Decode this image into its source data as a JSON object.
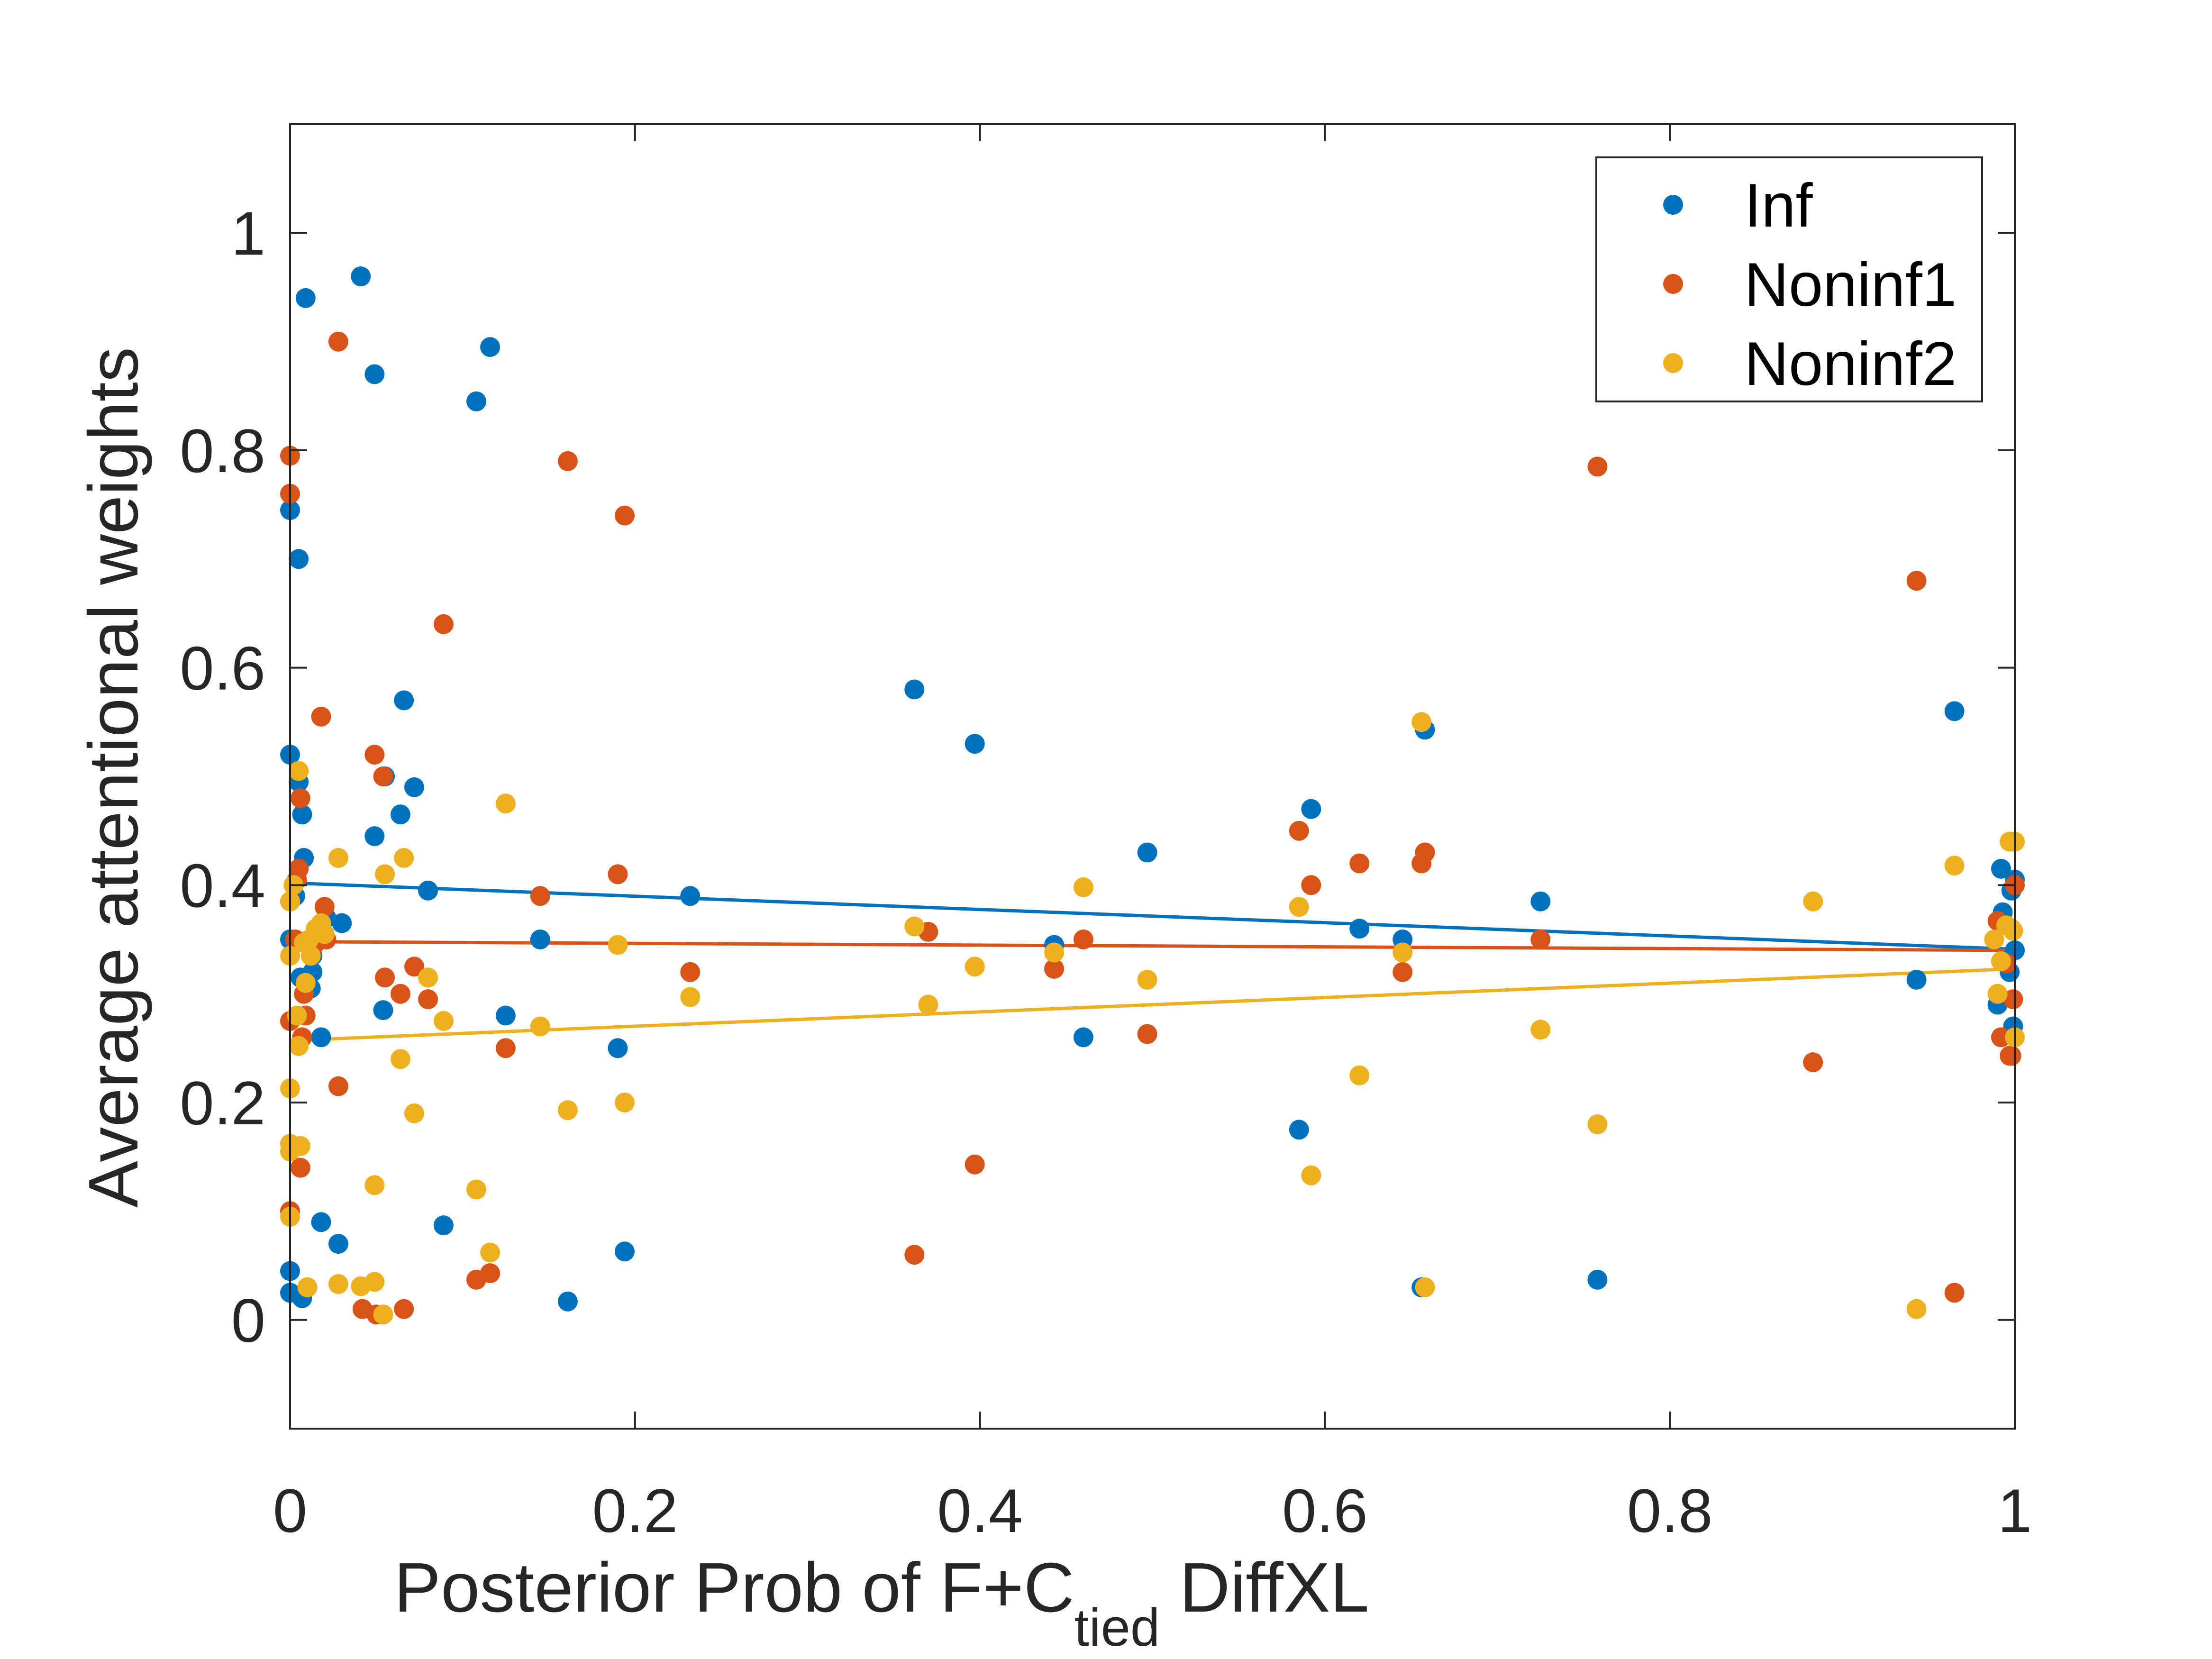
{
  "chart_data": {
    "type": "scatter",
    "title": "",
    "xlabel": {
      "main": "Posterior Prob of F+C",
      "sub": "tied",
      "suffix": " DiffXL"
    },
    "ylabel": "Average attentional weights",
    "xlim": [
      0,
      1
    ],
    "ylim": [
      -0.1,
      1.1
    ],
    "xticks": [
      0,
      0.2,
      0.4,
      0.6,
      0.8,
      1
    ],
    "xtick_labels": [
      "0",
      "0.2",
      "0.4",
      "0.6",
      "0.8",
      "1"
    ],
    "yticks": [
      0,
      0.2,
      0.4,
      0.6,
      0.8,
      1
    ],
    "ytick_labels": [
      "0",
      "0.2",
      "0.4",
      "0.6",
      "0.8",
      "1"
    ],
    "grid": false,
    "legend_position": "top-right",
    "series": [
      {
        "name": "Inf",
        "color": "#0072BD",
        "trend": [
          [
            0,
            0.402
          ],
          [
            1,
            0.341
          ]
        ],
        "points": [
          [
            0.0,
            0.745
          ],
          [
            0.0,
            0.52
          ],
          [
            0.0,
            0.35
          ],
          [
            0.0,
            0.045
          ],
          [
            0.0,
            0.025
          ],
          [
            0.003,
            0.39
          ],
          [
            0.005,
            0.7
          ],
          [
            0.005,
            0.495
          ],
          [
            0.006,
            0.315
          ],
          [
            0.007,
            0.02
          ],
          [
            0.007,
            0.465
          ],
          [
            0.008,
            0.425
          ],
          [
            0.009,
            0.94
          ],
          [
            0.01,
            0.03
          ],
          [
            0.012,
            0.305
          ],
          [
            0.013,
            0.335
          ],
          [
            0.013,
            0.32
          ],
          [
            0.018,
            0.26
          ],
          [
            0.018,
            0.09
          ],
          [
            0.021,
            0.37
          ],
          [
            0.028,
            0.07
          ],
          [
            0.03,
            0.365
          ],
          [
            0.041,
            0.96
          ],
          [
            0.049,
            0.87
          ],
          [
            0.049,
            0.445
          ],
          [
            0.054,
            0.285
          ],
          [
            0.055,
            0.5
          ],
          [
            0.064,
            0.465
          ],
          [
            0.066,
            0.57
          ],
          [
            0.072,
            0.49
          ],
          [
            0.08,
            0.395
          ],
          [
            0.089,
            0.087
          ],
          [
            0.108,
            0.845
          ],
          [
            0.116,
            0.895
          ],
          [
            0.125,
            0.28
          ],
          [
            0.145,
            0.35
          ],
          [
            0.161,
            0.017
          ],
          [
            0.19,
            0.25
          ],
          [
            0.194,
            0.063
          ],
          [
            0.232,
            0.39
          ],
          [
            0.362,
            0.58
          ],
          [
            0.397,
            0.53
          ],
          [
            0.443,
            0.345
          ],
          [
            0.46,
            0.26
          ],
          [
            0.497,
            0.43
          ],
          [
            0.585,
            0.175
          ],
          [
            0.592,
            0.47
          ],
          [
            0.62,
            0.36
          ],
          [
            0.645,
            0.35
          ],
          [
            0.656,
            0.03
          ],
          [
            0.658,
            0.543
          ],
          [
            0.725,
            0.385
          ],
          [
            0.758,
            0.037
          ],
          [
            0.943,
            0.313
          ],
          [
            0.965,
            0.56
          ],
          [
            0.99,
            0.29
          ],
          [
            0.992,
            0.415
          ],
          [
            0.993,
            0.375
          ],
          [
            0.995,
            0.33
          ],
          [
            0.997,
            0.32
          ],
          [
            0.998,
            0.395
          ],
          [
            0.999,
            0.27
          ],
          [
            1.0,
            0.405
          ],
          [
            1.0,
            0.34
          ]
        ]
      },
      {
        "name": "Noninf1",
        "color": "#D95319",
        "trend": [
          [
            0,
            0.348
          ],
          [
            1,
            0.34
          ]
        ],
        "points": [
          [
            0.0,
            0.795
          ],
          [
            0.0,
            0.76
          ],
          [
            0.0,
            0.385
          ],
          [
            0.0,
            0.275
          ],
          [
            0.0,
            0.1
          ],
          [
            0.003,
            0.35
          ],
          [
            0.004,
            0.405
          ],
          [
            0.005,
            0.415
          ],
          [
            0.006,
            0.48
          ],
          [
            0.006,
            0.14
          ],
          [
            0.007,
            0.26
          ],
          [
            0.008,
            0.3
          ],
          [
            0.009,
            0.28
          ],
          [
            0.012,
            0.35
          ],
          [
            0.014,
            0.345
          ],
          [
            0.018,
            0.555
          ],
          [
            0.02,
            0.38
          ],
          [
            0.021,
            0.35
          ],
          [
            0.028,
            0.9
          ],
          [
            0.028,
            0.215
          ],
          [
            0.042,
            0.01
          ],
          [
            0.049,
            0.52
          ],
          [
            0.05,
            0.005
          ],
          [
            0.054,
            0.5
          ],
          [
            0.055,
            0.315
          ],
          [
            0.064,
            0.3
          ],
          [
            0.066,
            0.01
          ],
          [
            0.072,
            0.325
          ],
          [
            0.08,
            0.295
          ],
          [
            0.089,
            0.64
          ],
          [
            0.108,
            0.037
          ],
          [
            0.116,
            0.043
          ],
          [
            0.125,
            0.25
          ],
          [
            0.145,
            0.39
          ],
          [
            0.161,
            0.79
          ],
          [
            0.19,
            0.41
          ],
          [
            0.194,
            0.74
          ],
          [
            0.232,
            0.32
          ],
          [
            0.362,
            0.06
          ],
          [
            0.37,
            0.357
          ],
          [
            0.397,
            0.143
          ],
          [
            0.443,
            0.323
          ],
          [
            0.46,
            0.35
          ],
          [
            0.497,
            0.263
          ],
          [
            0.585,
            0.45
          ],
          [
            0.592,
            0.4
          ],
          [
            0.62,
            0.42
          ],
          [
            0.645,
            0.32
          ],
          [
            0.656,
            0.42
          ],
          [
            0.658,
            0.43
          ],
          [
            0.725,
            0.35
          ],
          [
            0.758,
            0.785
          ],
          [
            0.883,
            0.237
          ],
          [
            0.943,
            0.68
          ],
          [
            0.965,
            0.025
          ],
          [
            0.99,
            0.367
          ],
          [
            0.992,
            0.26
          ],
          [
            0.995,
            0.328
          ],
          [
            0.997,
            0.243
          ],
          [
            0.998,
            0.243
          ],
          [
            0.999,
            0.295
          ],
          [
            1.0,
            0.4
          ]
        ]
      },
      {
        "name": "Noninf2",
        "color": "#EDB120",
        "trend": [
          [
            0,
            0.257
          ],
          [
            1,
            0.323
          ]
        ],
        "points": [
          [
            0.0,
            0.385
          ],
          [
            0.0,
            0.335
          ],
          [
            0.0,
            0.213
          ],
          [
            0.0,
            0.162
          ],
          [
            0.0,
            0.155
          ],
          [
            0.0,
            0.095
          ],
          [
            0.002,
            0.4
          ],
          [
            0.004,
            0.28
          ],
          [
            0.005,
            0.505
          ],
          [
            0.005,
            0.252
          ],
          [
            0.006,
            0.16
          ],
          [
            0.008,
            0.347
          ],
          [
            0.009,
            0.31
          ],
          [
            0.01,
            0.03
          ],
          [
            0.011,
            0.35
          ],
          [
            0.012,
            0.335
          ],
          [
            0.015,
            0.36
          ],
          [
            0.018,
            0.365
          ],
          [
            0.02,
            0.355
          ],
          [
            0.028,
            0.425
          ],
          [
            0.028,
            0.033
          ],
          [
            0.041,
            0.031
          ],
          [
            0.049,
            0.124
          ],
          [
            0.049,
            0.035
          ],
          [
            0.054,
            0.005
          ],
          [
            0.055,
            0.41
          ],
          [
            0.064,
            0.24
          ],
          [
            0.066,
            0.425
          ],
          [
            0.072,
            0.19
          ],
          [
            0.08,
            0.315
          ],
          [
            0.089,
            0.275
          ],
          [
            0.108,
            0.12
          ],
          [
            0.116,
            0.062
          ],
          [
            0.125,
            0.475
          ],
          [
            0.145,
            0.27
          ],
          [
            0.161,
            0.193
          ],
          [
            0.19,
            0.345
          ],
          [
            0.194,
            0.2
          ],
          [
            0.232,
            0.297
          ],
          [
            0.362,
            0.362
          ],
          [
            0.37,
            0.29
          ],
          [
            0.397,
            0.325
          ],
          [
            0.443,
            0.338
          ],
          [
            0.46,
            0.398
          ],
          [
            0.497,
            0.313
          ],
          [
            0.585,
            0.38
          ],
          [
            0.592,
            0.133
          ],
          [
            0.62,
            0.225
          ],
          [
            0.645,
            0.338
          ],
          [
            0.656,
            0.55
          ],
          [
            0.658,
            0.03
          ],
          [
            0.725,
            0.267
          ],
          [
            0.758,
            0.18
          ],
          [
            0.883,
            0.385
          ],
          [
            0.943,
            0.01
          ],
          [
            0.965,
            0.418
          ],
          [
            0.988,
            0.35
          ],
          [
            0.99,
            0.3
          ],
          [
            0.992,
            0.33
          ],
          [
            0.995,
            0.363
          ],
          [
            0.997,
            0.44
          ],
          [
            0.998,
            0.36
          ],
          [
            0.999,
            0.358
          ],
          [
            1.0,
            0.26
          ],
          [
            1.0,
            0.44
          ]
        ]
      }
    ]
  }
}
